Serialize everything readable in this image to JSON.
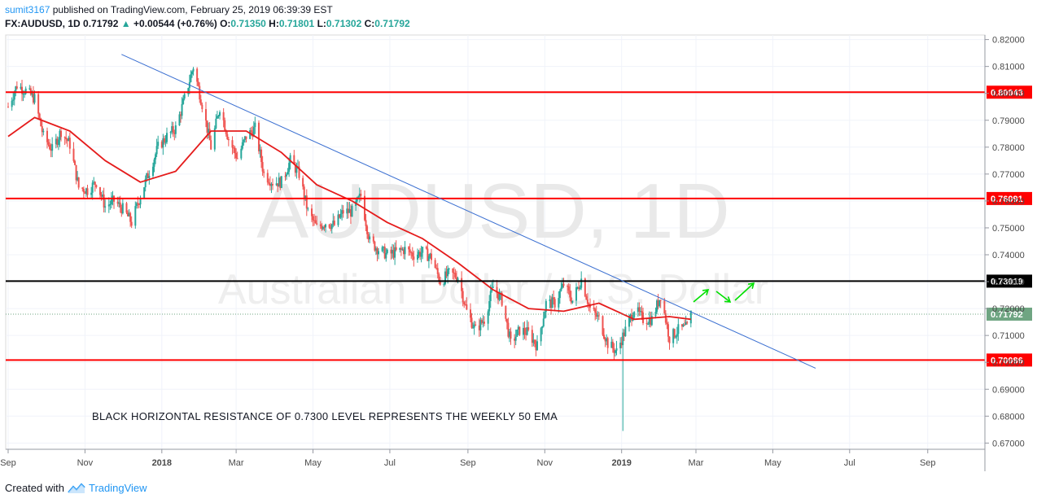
{
  "header": {
    "user": "sumit3167",
    "published": "published on TradingView.com, February 25, 2019 06:39:39 EST",
    "symbol": "FX:AUDUSD, 1D",
    "last": "0.71792",
    "change_arrow": "▲",
    "change": "+0.00544 (+0.76%)",
    "o_label": "O:",
    "o": "0.71350",
    "h_label": "H:",
    "h": "0.71801",
    "l_label": "L:",
    "l": "0.71302",
    "c_label": "C:",
    "c": "0.71792"
  },
  "watermark": {
    "symbol": "AUDUSD, 1D",
    "name": "Australian Dollar / U.S. Dollar"
  },
  "footer": {
    "created_with": "Created with",
    "brand": "TradingView"
  },
  "colors": {
    "up": "#26a69a",
    "down": "#ef5350",
    "ema": "#e51c1c",
    "support": "#ff0000",
    "resistance": "#000000",
    "trendline": "#3a6fd1",
    "arrows": "#00e000",
    "last_price": "#6fa582"
  },
  "chart_data": {
    "type": "candlestick",
    "symbol": "FX:AUDUSD",
    "interval": "1D",
    "ylim": [
      0.665,
      0.822
    ],
    "y_ticks": [
      "0.82000",
      "0.81000",
      "0.80000",
      "0.79000",
      "0.78000",
      "0.77000",
      "0.76000",
      "0.75000",
      "0.74000",
      "0.73000",
      "0.72000",
      "0.71000",
      "0.70000",
      "0.69000",
      "0.68000",
      "0.67000"
    ],
    "x_labels": [
      "Sep",
      "Nov",
      "2018",
      "Mar",
      "May",
      "Jul",
      "Sep",
      "Nov",
      "2019",
      "Mar",
      "May",
      "Jul",
      "Sep"
    ],
    "x_labels_bold": [
      "2018",
      "2019"
    ],
    "x_range": [
      "2017-09-01",
      "2019-10-15"
    ],
    "horizontal_levels": [
      {
        "value": 0.80043,
        "label": "0.80043",
        "color": "red"
      },
      {
        "value": 0.76091,
        "label": "0.76091",
        "color": "red"
      },
      {
        "value": 0.73019,
        "label": "0.73019",
        "color": "black"
      },
      {
        "value": 0.70086,
        "label": "0.70086",
        "color": "red"
      }
    ],
    "last_price": {
      "value": 0.71792,
      "label": "0.71792"
    },
    "trendline": {
      "from": {
        "date": "2017-11-30",
        "value": 0.8145
      },
      "to": {
        "date": "2019-06-04",
        "value": 0.6978
      }
    },
    "annotation": "BLACK HORIZONTAL RESISTANCE OF 0.7300 LEVEL REPRESENTS THE WEEKLY 50 EMA",
    "price_path": [
      [
        "2017-09-01",
        0.795
      ],
      [
        "2017-09-08",
        0.803
      ],
      [
        "2017-09-15",
        0.801
      ],
      [
        "2017-09-22",
        0.798
      ],
      [
        "2017-09-29",
        0.784
      ],
      [
        "2017-10-06",
        0.779
      ],
      [
        "2017-10-13",
        0.786
      ],
      [
        "2017-10-20",
        0.781
      ],
      [
        "2017-10-27",
        0.765
      ],
      [
        "2017-11-03",
        0.764
      ],
      [
        "2017-11-10",
        0.767
      ],
      [
        "2017-11-17",
        0.758
      ],
      [
        "2017-11-24",
        0.76
      ],
      [
        "2017-12-01",
        0.757
      ],
      [
        "2017-12-08",
        0.752
      ],
      [
        "2017-12-15",
        0.762
      ],
      [
        "2017-12-22",
        0.771
      ],
      [
        "2017-12-29",
        0.78
      ],
      [
        "2018-01-05",
        0.784
      ],
      [
        "2018-01-12",
        0.787
      ],
      [
        "2018-01-19",
        0.798
      ],
      [
        "2018-01-26",
        0.81
      ],
      [
        "2018-02-02",
        0.796
      ],
      [
        "2018-02-09",
        0.78
      ],
      [
        "2018-02-16",
        0.795
      ],
      [
        "2018-02-23",
        0.783
      ],
      [
        "2018-03-02",
        0.776
      ],
      [
        "2018-03-09",
        0.784
      ],
      [
        "2018-03-16",
        0.787
      ],
      [
        "2018-03-23",
        0.77
      ],
      [
        "2018-03-30",
        0.767
      ],
      [
        "2018-04-06",
        0.767
      ],
      [
        "2018-04-13",
        0.775
      ],
      [
        "2018-04-20",
        0.77
      ],
      [
        "2018-04-27",
        0.756
      ],
      [
        "2018-05-04",
        0.75
      ],
      [
        "2018-05-11",
        0.752
      ],
      [
        "2018-05-18",
        0.751
      ],
      [
        "2018-05-25",
        0.756
      ],
      [
        "2018-06-01",
        0.756
      ],
      [
        "2018-06-08",
        0.762
      ],
      [
        "2018-06-15",
        0.745
      ],
      [
        "2018-06-22",
        0.742
      ],
      [
        "2018-06-29",
        0.74
      ],
      [
        "2018-07-06",
        0.741
      ],
      [
        "2018-07-13",
        0.742
      ],
      [
        "2018-07-20",
        0.74
      ],
      [
        "2018-07-27",
        0.741
      ],
      [
        "2018-08-03",
        0.739
      ],
      [
        "2018-08-10",
        0.73
      ],
      [
        "2018-08-17",
        0.733
      ],
      [
        "2018-08-24",
        0.732
      ],
      [
        "2018-08-31",
        0.719
      ],
      [
        "2018-09-07",
        0.712
      ],
      [
        "2018-09-14",
        0.716
      ],
      [
        "2018-09-21",
        0.728
      ],
      [
        "2018-09-28",
        0.723
      ],
      [
        "2018-10-05",
        0.707
      ],
      [
        "2018-10-12",
        0.712
      ],
      [
        "2018-10-19",
        0.711
      ],
      [
        "2018-10-26",
        0.706
      ],
      [
        "2018-11-02",
        0.722
      ],
      [
        "2018-11-09",
        0.722
      ],
      [
        "2018-11-16",
        0.729
      ],
      [
        "2018-11-23",
        0.723
      ],
      [
        "2018-11-30",
        0.731
      ],
      [
        "2018-12-07",
        0.72
      ],
      [
        "2018-12-14",
        0.716
      ],
      [
        "2018-12-21",
        0.707
      ],
      [
        "2018-12-28",
        0.704
      ],
      [
        "2019-01-04",
        0.712
      ],
      [
        "2019-01-11",
        0.72
      ],
      [
        "2019-01-18",
        0.716
      ],
      [
        "2019-01-25",
        0.716
      ],
      [
        "2019-02-01",
        0.725
      ],
      [
        "2019-02-08",
        0.709
      ],
      [
        "2019-02-15",
        0.712
      ],
      [
        "2019-02-22",
        0.713
      ],
      [
        "2019-02-25",
        0.718
      ]
    ],
    "ema_path": [
      [
        "2017-09-01",
        0.784
      ],
      [
        "2017-09-22",
        0.791
      ],
      [
        "2017-10-20",
        0.786
      ],
      [
        "2017-11-17",
        0.775
      ],
      [
        "2017-12-15",
        0.767
      ],
      [
        "2018-01-12",
        0.771
      ],
      [
        "2018-02-09",
        0.786
      ],
      [
        "2018-03-09",
        0.786
      ],
      [
        "2018-04-06",
        0.778
      ],
      [
        "2018-05-04",
        0.766
      ],
      [
        "2018-06-01",
        0.76
      ],
      [
        "2018-06-29",
        0.752
      ],
      [
        "2018-07-27",
        0.746
      ],
      [
        "2018-08-24",
        0.737
      ],
      [
        "2018-09-21",
        0.727
      ],
      [
        "2018-10-19",
        0.72
      ],
      [
        "2018-11-16",
        0.719
      ],
      [
        "2018-12-14",
        0.722
      ],
      [
        "2019-01-11",
        0.716
      ],
      [
        "2019-02-08",
        0.717
      ],
      [
        "2019-02-25",
        0.716
      ]
    ]
  }
}
